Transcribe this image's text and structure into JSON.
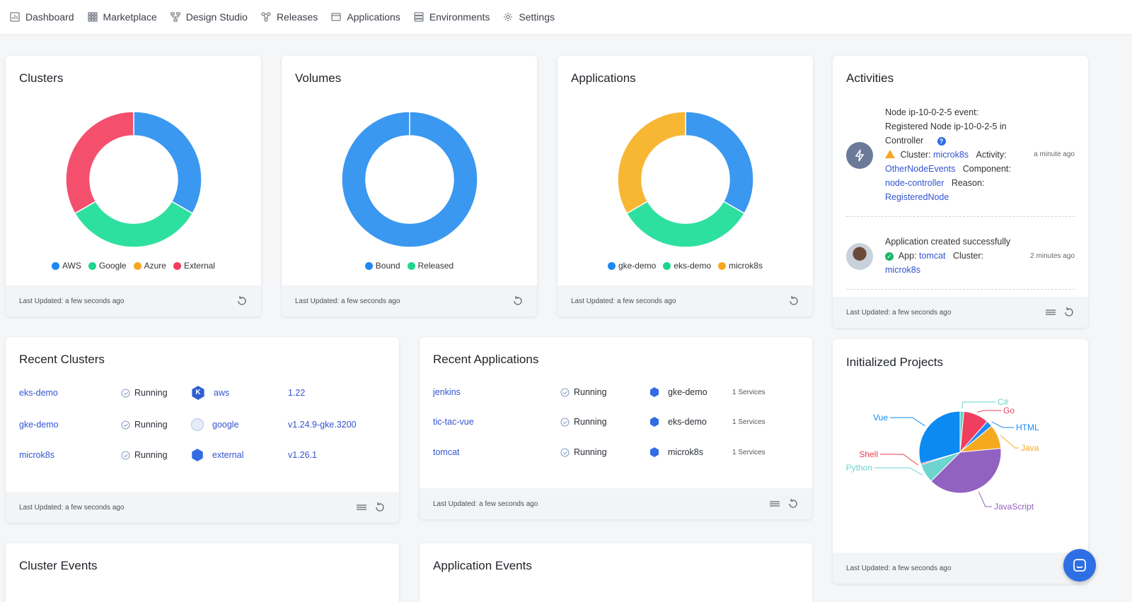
{
  "nav": {
    "items": [
      {
        "label": "Dashboard",
        "icon": "dashboard-icon"
      },
      {
        "label": "Marketplace",
        "icon": "grid-icon"
      },
      {
        "label": "Design Studio",
        "icon": "design-studio-icon"
      },
      {
        "label": "Releases",
        "icon": "releases-icon"
      },
      {
        "label": "Applications",
        "icon": "applications-icon"
      },
      {
        "label": "Environments",
        "icon": "environments-icon"
      },
      {
        "label": "Settings",
        "icon": "gear-icon"
      }
    ]
  },
  "colors": {
    "blue": "#3a98f0",
    "green": "#2ee0a0",
    "orange": "#f7b733",
    "red": "#f4506e",
    "link": "#3354d1"
  },
  "clusters": {
    "title": "Clusters",
    "legend": [
      "AWS",
      "Google",
      "Azure",
      "External"
    ],
    "footer": "Last Updated: a few seconds ago"
  },
  "volumes": {
    "title": "Volumes",
    "legend": [
      "Bound",
      "Released"
    ],
    "footer": "Last Updated: a few seconds ago"
  },
  "applications": {
    "title": "Applications",
    "legend": [
      "gke-demo",
      "eks-demo",
      "microk8s"
    ],
    "footer": "Last Updated: a few seconds ago"
  },
  "activities": {
    "title": "Activities",
    "footer": "Last Updated: a few seconds ago",
    "items": [
      {
        "line1": "Node ip-10-0-2-5 event:",
        "line2": "Registered Node ip-10-0-2-5 in",
        "line3": "Controller",
        "cluster_label": "Cluster:",
        "cluster": "microk8s",
        "activity_label": "Activity:",
        "activity": "OtherNodeEvents",
        "component_label": "Component:",
        "component": "node-controller",
        "reason_label": "Reason:",
        "reason": "RegisteredNode",
        "time": "a minute ago"
      },
      {
        "line1": "Application created successfully",
        "app_label": "App:",
        "app": "tomcat",
        "cluster_label": "Cluster:",
        "cluster": "microk8s",
        "time": "2 minutes ago"
      }
    ]
  },
  "recent_clusters": {
    "title": "Recent Clusters",
    "footer": "Last Updated: a few seconds ago",
    "rows": [
      {
        "name": "eks-demo",
        "status": "Running",
        "provider": "aws",
        "version": "1.22"
      },
      {
        "name": "gke-demo",
        "status": "Running",
        "provider": "google",
        "version": "v1.24.9-gke.3200"
      },
      {
        "name": "microk8s",
        "status": "Running",
        "provider": "external",
        "version": "v1.26.1"
      }
    ]
  },
  "recent_applications": {
    "title": "Recent Applications",
    "footer": "Last Updated: a few seconds ago",
    "rows": [
      {
        "name": "jenkins",
        "status": "Running",
        "cluster": "gke-demo",
        "services": "1 Services"
      },
      {
        "name": "tic-tac-vue",
        "status": "Running",
        "cluster": "eks-demo",
        "services": "1 Services"
      },
      {
        "name": "tomcat",
        "status": "Running",
        "cluster": "microk8s",
        "services": "1 Services"
      }
    ]
  },
  "initialized_projects": {
    "title": "Initialized Projects",
    "footer": "Last Updated: a few seconds ago"
  },
  "cluster_events": {
    "title": "Cluster Events"
  },
  "application_events": {
    "title": "Application Events"
  },
  "chart_data": [
    {
      "type": "pie",
      "title": "Clusters",
      "donut": true,
      "categories": [
        "AWS",
        "Google",
        "Azure",
        "External"
      ],
      "values": [
        1,
        1,
        0,
        1
      ],
      "colors": [
        "#3a98f0",
        "#2ee0a0",
        "#f7b733",
        "#f4506e"
      ]
    },
    {
      "type": "pie",
      "title": "Volumes",
      "donut": true,
      "categories": [
        "Bound",
        "Released"
      ],
      "values": [
        1,
        0
      ],
      "colors": [
        "#3a98f0",
        "#2ee0a0"
      ]
    },
    {
      "type": "pie",
      "title": "Applications",
      "donut": true,
      "categories": [
        "gke-demo",
        "eks-demo",
        "microk8s"
      ],
      "values": [
        1,
        1,
        1
      ],
      "colors": [
        "#3a98f0",
        "#2ee0a0",
        "#f7b733"
      ]
    },
    {
      "type": "pie",
      "title": "Initialized Projects",
      "categories": [
        "C#",
        "Go",
        "HTML",
        "Java",
        "JavaScript",
        "Python",
        "Shell",
        "Vue"
      ],
      "values": [
        1.5,
        10,
        2.5,
        9.5,
        39,
        7.5,
        0.5,
        29.5
      ],
      "colors": [
        "#5fd3c4",
        "#f03e5e",
        "#1e8bf5",
        "#f6a91e",
        "#9162c0",
        "#6dd4cf",
        "#e8404f",
        "#0b8af2"
      ]
    }
  ]
}
